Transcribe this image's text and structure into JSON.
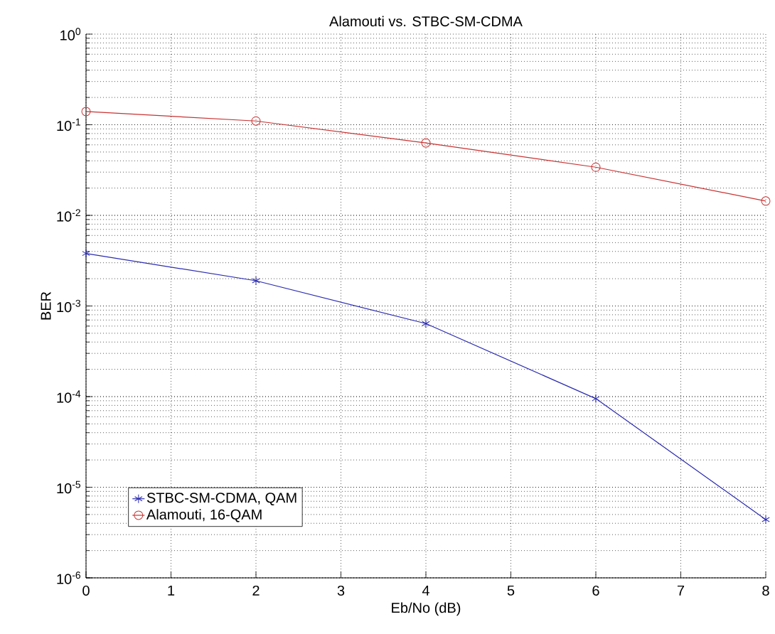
{
  "chart_data": {
    "type": "line",
    "title": "Alamouti vs. STBC-SM-CDMA",
    "xlabel": "Eb/No (dB)",
    "ylabel": "BER",
    "x": [
      0,
      2,
      4,
      6,
      8
    ],
    "series": [
      {
        "name": "STBC-SM-CDMA, QAM",
        "color": "#2b2bb0",
        "marker": "cross",
        "values": [
          0.0038,
          0.0019,
          0.00064,
          9.5e-05,
          4.4e-06
        ]
      },
      {
        "name": "Alamouti, 16-QAM",
        "color": "#c83232",
        "marker": "circle",
        "values": [
          0.14,
          0.11,
          0.063,
          0.034,
          0.0144
        ]
      }
    ],
    "log": "y",
    "xlim": [
      0,
      8
    ],
    "ylim": [
      1e-06,
      1
    ],
    "xticks": [
      0,
      1,
      2,
      3,
      4,
      5,
      6,
      7,
      8
    ],
    "yticks": [
      {
        "value": 1e-06,
        "label": "10$^{-6}$"
      },
      {
        "value": 1e-05,
        "label": "10$^{-5}$"
      },
      {
        "value": 0.0001,
        "label": "10$^{-4}$"
      },
      {
        "value": 0.001,
        "label": "10$^{-3}$"
      },
      {
        "value": 0.01,
        "label": "10$^{-2}$"
      },
      {
        "value": 0.1,
        "label": "10$^{-1}$"
      },
      {
        "value": 1,
        "label": "10$^{0}$"
      }
    ],
    "grid": true,
    "legend": "bottom left",
    "line_style": "solid"
  }
}
